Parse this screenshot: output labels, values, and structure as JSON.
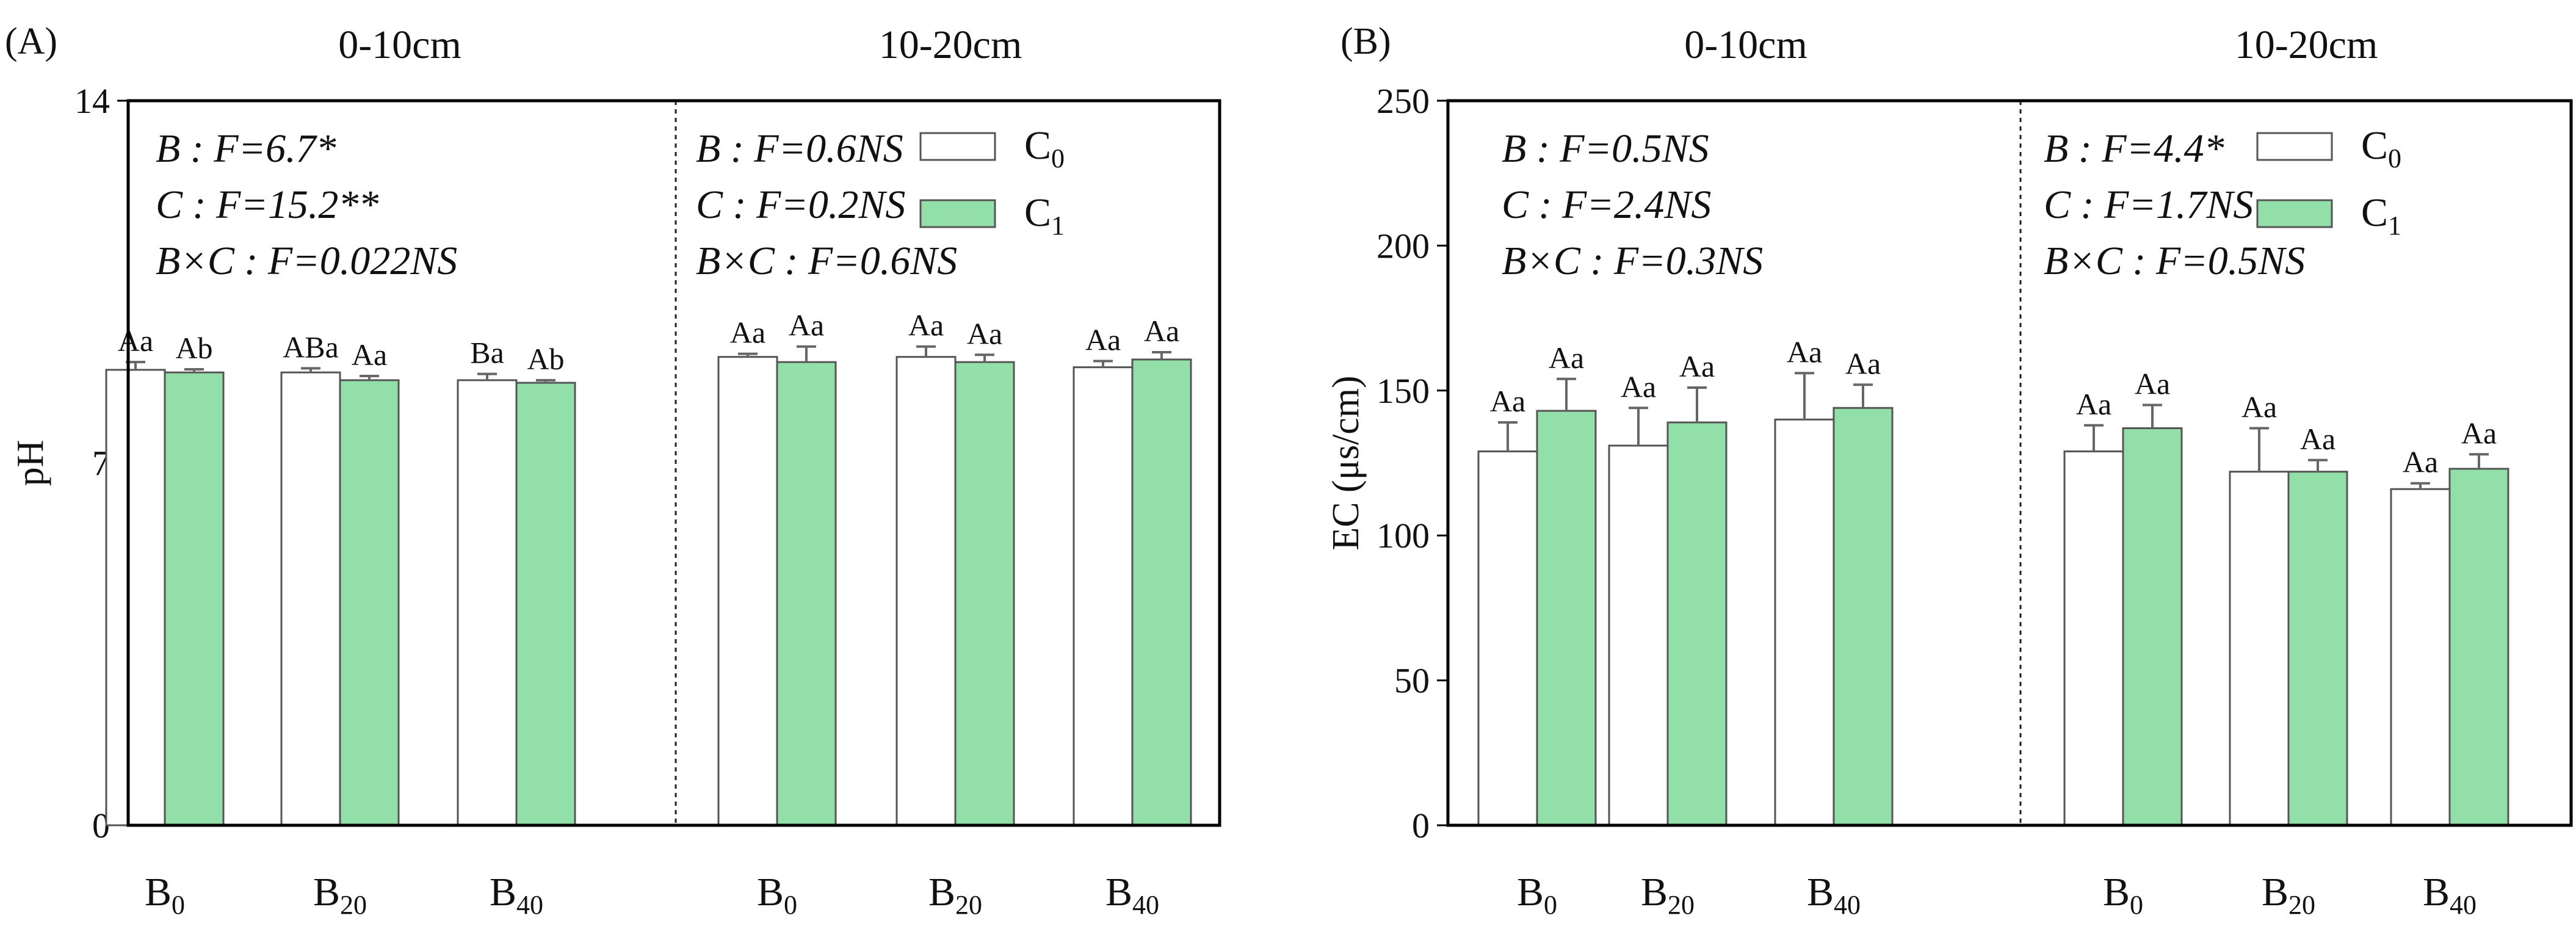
{
  "colors": {
    "c0": "#ffffff",
    "c1": "#93dfa9",
    "bar_stroke": "#555555",
    "error_bar": "#666666",
    "axis": "#000000"
  },
  "legend": [
    {
      "key": "c0",
      "base": "C",
      "sub": "0"
    },
    {
      "key": "c1",
      "base": "C",
      "sub": "1"
    }
  ],
  "chart_data": [
    {
      "type": "bar",
      "panel_label": "(A)",
      "ylabel": "pH",
      "ylim": [
        0,
        14
      ],
      "yticks": [
        0,
        7,
        14
      ],
      "legend_position": "top-right",
      "groups": [
        {
          "depth": "0-10cm",
          "stats": [
            "B : F=6.7*",
            "C : F=15.2**",
            "B×C : F=0.022NS"
          ],
          "categories": [
            {
              "base": "B",
              "sub": "0"
            },
            {
              "base": "B",
              "sub": "20"
            },
            {
              "base": "B",
              "sub": "40"
            }
          ],
          "series": [
            {
              "name": "C0",
              "values": [
                8.8,
                8.75,
                8.6
              ],
              "errors": [
                0.15,
                0.08,
                0.12
              ],
              "labels": [
                "Aa",
                "ABa",
                "Ba"
              ]
            },
            {
              "name": "C1",
              "values": [
                8.75,
                8.6,
                8.55
              ],
              "errors": [
                0.06,
                0.08,
                0.05
              ],
              "labels": [
                "Ab",
                "Aa",
                "Ab"
              ]
            }
          ]
        },
        {
          "depth": "10-20cm",
          "stats": [
            "B : F=0.6NS",
            "C : F=0.2NS",
            "B×C : F=0.6NS"
          ],
          "categories": [
            {
              "base": "B",
              "sub": "0"
            },
            {
              "base": "B",
              "sub": "20"
            },
            {
              "base": "B",
              "sub": "40"
            }
          ],
          "series": [
            {
              "name": "C0",
              "values": [
                9.05,
                9.05,
                8.85
              ],
              "errors": [
                0.06,
                0.2,
                0.12
              ],
              "labels": [
                "Aa",
                "Aa",
                "Aa"
              ]
            },
            {
              "name": "C1",
              "values": [
                8.95,
                8.95,
                9.0
              ],
              "errors": [
                0.3,
                0.14,
                0.14
              ],
              "labels": [
                "Aa",
                "Aa",
                "Aa"
              ]
            }
          ]
        }
      ]
    },
    {
      "type": "bar",
      "panel_label": "(B)",
      "ylabel": "EC (μs/cm)",
      "ylim": [
        0,
        250
      ],
      "yticks": [
        0,
        50,
        100,
        150,
        200,
        250
      ],
      "legend_position": "top-right",
      "groups": [
        {
          "depth": "0-10cm",
          "stats": [
            "B : F=0.5NS",
            "C : F=2.4NS",
            "B×C : F=0.3NS"
          ],
          "categories": [
            {
              "base": "B",
              "sub": "0"
            },
            {
              "base": "B",
              "sub": "20"
            },
            {
              "base": "B",
              "sub": "40"
            }
          ],
          "series": [
            {
              "name": "C0",
              "values": [
                129,
                131,
                140
              ],
              "errors": [
                10,
                13,
                16
              ],
              "labels": [
                "Aa",
                "Aa",
                "Aa"
              ]
            },
            {
              "name": "C1",
              "values": [
                143,
                139,
                144
              ],
              "errors": [
                11,
                12,
                8
              ],
              "labels": [
                "Aa",
                "Aa",
                "Aa"
              ]
            }
          ]
        },
        {
          "depth": "10-20cm",
          "stats": [
            "B : F=4.4*",
            "C : F=1.7NS",
            "B×C : F=0.5NS"
          ],
          "categories": [
            {
              "base": "B",
              "sub": "0"
            },
            {
              "base": "B",
              "sub": "20"
            },
            {
              "base": "B",
              "sub": "40"
            }
          ],
          "series": [
            {
              "name": "C0",
              "values": [
                129,
                122,
                116
              ],
              "errors": [
                9,
                15,
                2
              ],
              "labels": [
                "Aa",
                "Aa",
                "Aa"
              ]
            },
            {
              "name": "C1",
              "values": [
                137,
                122,
                123
              ],
              "errors": [
                8,
                4,
                5
              ],
              "labels": [
                "Aa",
                "Aa",
                "Aa"
              ]
            }
          ]
        }
      ]
    }
  ]
}
